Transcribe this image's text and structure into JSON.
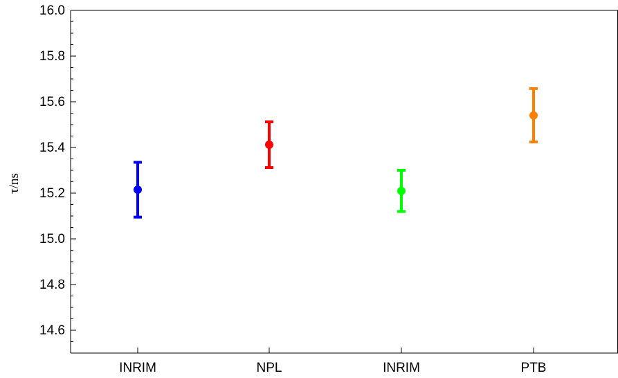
{
  "chart_data": {
    "type": "scatter",
    "subtype": "errorbar",
    "title": "",
    "xlabel": "",
    "ylabel": "τ/ns",
    "ylim": [
      14.5,
      16.0
    ],
    "yticks": [
      "14.6",
      "14.8",
      "15.0",
      "15.2",
      "15.4",
      "15.6",
      "15.8",
      "16.0"
    ],
    "grid": false,
    "categories": [
      "INRIM",
      "NPL",
      "INRIM",
      "PTB"
    ],
    "points": [
      {
        "category": "INRIM",
        "value": 15.215,
        "lower": 15.095,
        "upper": 15.335,
        "color": "#0000ff"
      },
      {
        "category": "NPL",
        "value": 15.412,
        "lower": 15.312,
        "upper": 15.512,
        "color": "#ff0000"
      },
      {
        "category": "INRIM",
        "value": 15.21,
        "lower": 15.12,
        "upper": 15.3,
        "color": "#00ff00"
      },
      {
        "category": "PTB",
        "value": 15.54,
        "lower": 15.424,
        "upper": 15.658,
        "color": "#ff8000"
      }
    ]
  }
}
